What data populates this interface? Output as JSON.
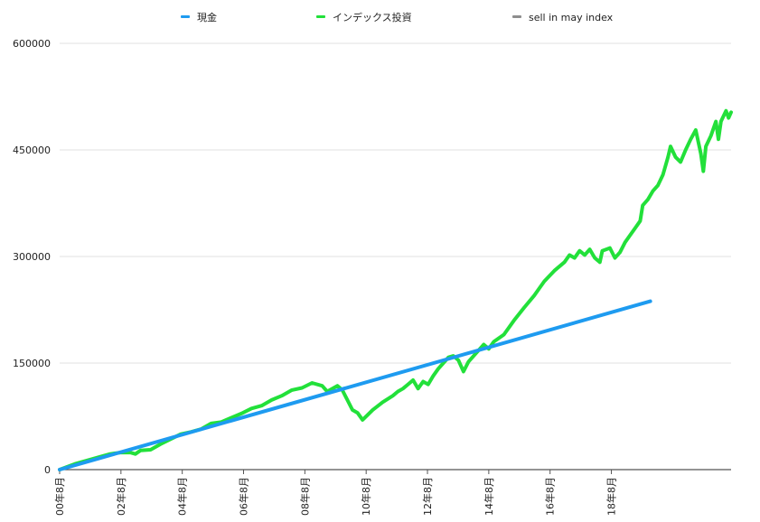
{
  "chart_data": {
    "type": "line",
    "title": "",
    "xlabel": "",
    "ylabel": "",
    "ylim": [
      0,
      600000
    ],
    "y_ticks": [
      "0",
      "150000",
      "300000",
      "450000",
      "600000"
    ],
    "y_tick_values": [
      0,
      150000,
      300000,
      450000,
      600000
    ],
    "x_tick_labels": [
      "00年8月",
      "02年8月",
      "04年8月",
      "06年8月",
      "08年8月",
      "10年8月",
      "12年8月",
      "14年8月",
      "16年8月",
      "18年8月"
    ],
    "grid": true,
    "legend_position": "top",
    "x_unit": "month index starting Aug 2000",
    "series": [
      {
        "name": "現金",
        "color": "#1E9BF0",
        "points": [
          [
            0,
            0
          ],
          [
            234,
            237000
          ]
        ]
      },
      {
        "name": "インデックス投資",
        "color": "#22E03A",
        "points": [
          [
            0,
            0
          ],
          [
            6,
            8000
          ],
          [
            10,
            12000
          ],
          [
            16,
            18000
          ],
          [
            20,
            22000
          ],
          [
            24,
            24000
          ],
          [
            28,
            24000
          ],
          [
            30,
            22000
          ],
          [
            32,
            27000
          ],
          [
            36,
            28000
          ],
          [
            40,
            36000
          ],
          [
            44,
            43000
          ],
          [
            48,
            50000
          ],
          [
            52,
            53000
          ],
          [
            56,
            57000
          ],
          [
            60,
            65000
          ],
          [
            64,
            67000
          ],
          [
            68,
            73000
          ],
          [
            72,
            79000
          ],
          [
            76,
            86000
          ],
          [
            80,
            90000
          ],
          [
            84,
            98000
          ],
          [
            88,
            104000
          ],
          [
            92,
            112000
          ],
          [
            96,
            115000
          ],
          [
            100,
            122000
          ],
          [
            104,
            118000
          ],
          [
            106,
            110000
          ],
          [
            110,
            118000
          ],
          [
            112,
            112000
          ],
          [
            114,
            98000
          ],
          [
            116,
            84000
          ],
          [
            118,
            80000
          ],
          [
            120,
            70000
          ],
          [
            124,
            84000
          ],
          [
            128,
            95000
          ],
          [
            132,
            104000
          ],
          [
            134,
            110000
          ],
          [
            136,
            114000
          ],
          [
            138,
            120000
          ],
          [
            140,
            126000
          ],
          [
            142,
            114000
          ],
          [
            144,
            124000
          ],
          [
            146,
            120000
          ],
          [
            148,
            132000
          ],
          [
            150,
            142000
          ],
          [
            152,
            150000
          ],
          [
            154,
            158000
          ],
          [
            156,
            160000
          ],
          [
            158,
            154000
          ],
          [
            160,
            138000
          ],
          [
            162,
            152000
          ],
          [
            166,
            168000
          ],
          [
            168,
            176000
          ],
          [
            170,
            170000
          ],
          [
            172,
            180000
          ],
          [
            176,
            190000
          ],
          [
            180,
            210000
          ],
          [
            184,
            228000
          ],
          [
            188,
            245000
          ],
          [
            190,
            255000
          ],
          [
            192,
            265000
          ],
          [
            196,
            280000
          ],
          [
            200,
            292000
          ],
          [
            202,
            302000
          ],
          [
            204,
            298000
          ],
          [
            206,
            308000
          ],
          [
            208,
            302000
          ],
          [
            210,
            310000
          ],
          [
            212,
            298000
          ],
          [
            214,
            292000
          ],
          [
            215,
            308000
          ],
          [
            218,
            312000
          ],
          [
            220,
            298000
          ],
          [
            222,
            306000
          ],
          [
            224,
            320000
          ],
          [
            226,
            330000
          ],
          [
            228,
            340000
          ],
          [
            230,
            350000
          ],
          [
            231,
            372000
          ],
          [
            233,
            380000
          ],
          [
            235,
            392000
          ],
          [
            237,
            400000
          ],
          [
            239,
            415000
          ],
          [
            241,
            440000
          ],
          [
            242,
            455000
          ],
          [
            244,
            440000
          ],
          [
            246,
            433000
          ],
          [
            248,
            450000
          ],
          [
            250,
            465000
          ],
          [
            252,
            478000
          ],
          [
            254,
            445000
          ],
          [
            255,
            420000
          ],
          [
            256,
            455000
          ],
          [
            258,
            470000
          ],
          [
            260,
            490000
          ],
          [
            261,
            465000
          ],
          [
            262,
            490000
          ],
          [
            264,
            505000
          ],
          [
            265,
            495000
          ],
          [
            266,
            503000
          ]
        ]
      },
      {
        "name": "sell in may index",
        "color": "#8E8E8E",
        "points": []
      }
    ]
  }
}
